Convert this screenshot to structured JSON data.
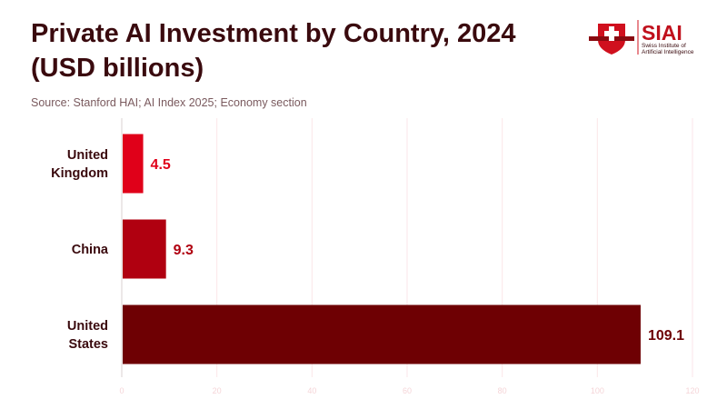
{
  "header": {
    "title_line1": "Private AI Investment by Country, 2024",
    "title_line2": "(USD billions)",
    "source": "Source: Stanford HAI; AI Index 2025; Economy section"
  },
  "logo": {
    "name": "SIAI",
    "line1": "Swiss Institute of",
    "line2": "Artificial Intelligence"
  },
  "chart_data": {
    "type": "bar",
    "orientation": "horizontal",
    "title": "Private AI Investment by Country, 2024 (USD billions)",
    "categories": [
      [
        "United",
        "Kingdom"
      ],
      [
        "China"
      ],
      [
        "United",
        "States"
      ]
    ],
    "values": [
      4.5,
      9.3,
      109.1
    ],
    "value_labels": [
      "4.5",
      "9.3",
      "109.1"
    ],
    "colors": [
      "#e00019",
      "#b00010",
      "#6e0003"
    ],
    "xlim": [
      0,
      120
    ],
    "xticks": [
      "0",
      "20",
      "40",
      "60",
      "80",
      "100",
      "120"
    ],
    "grid": true,
    "xlabel": "",
    "ylabel": ""
  }
}
